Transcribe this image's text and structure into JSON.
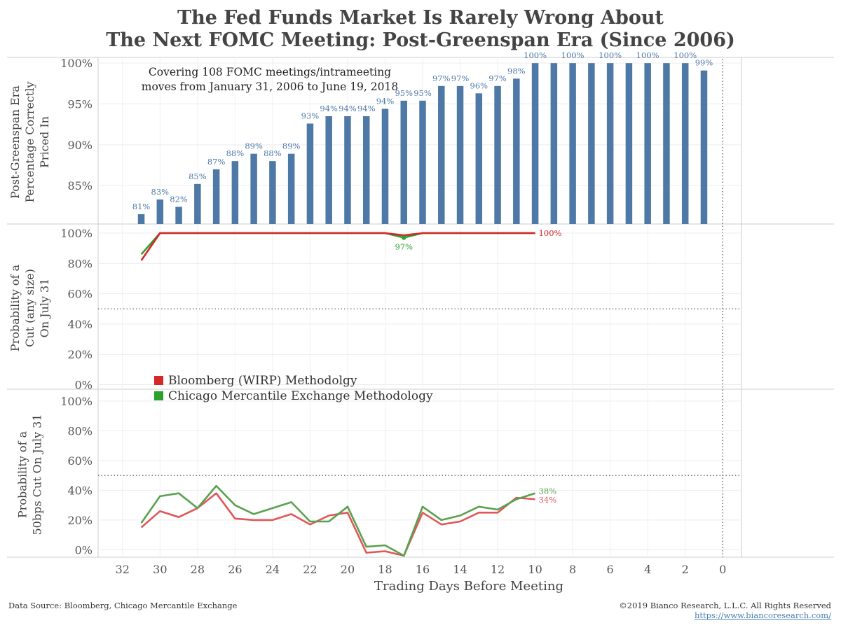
{
  "title": {
    "line1": "The Fed Funds Market Is Rarely Wrong About",
    "line2": "The Next FOMC Meeting: Post-Greenspan Era (Since 2006)"
  },
  "footer": {
    "source": "Data Source: Bloomberg, Chicago Mercantile Exchange",
    "copyright": "©2019 Bianco Research, L.L.C. All Rights Reserved",
    "url": "https://www.biancoresearch.com/"
  },
  "colors": {
    "bar": "#4e79a7",
    "bloomberg": "#d62728",
    "cme": "#2ca02c",
    "bloomberg_line2": "#e15759",
    "cme_line2": "#59a14f"
  },
  "chart_data": [
    {
      "type": "bar",
      "ylabel": [
        "Post-Greenspan Era",
        "Percentage Correctly",
        "Priced In"
      ],
      "note": [
        "Covering 108 FOMC meetings/intrameeting",
        "moves from January 31, 2006 to June 19, 2018"
      ],
      "yticks": [
        "85%",
        "90%",
        "95%",
        "100%"
      ],
      "ytick_values": [
        85,
        90,
        95,
        100
      ],
      "ylim": [
        80.3,
        100.7
      ],
      "x": [
        31,
        30,
        29,
        28,
        27,
        26,
        25,
        24,
        23,
        22,
        21,
        20,
        19,
        18,
        17,
        16,
        15,
        14,
        13,
        12,
        11,
        10,
        9,
        8,
        7,
        6,
        5,
        4,
        3,
        2,
        1
      ],
      "values": [
        81.5,
        83.3,
        82.4,
        85.2,
        87.0,
        88.0,
        88.9,
        88.0,
        88.9,
        92.6,
        93.5,
        93.5,
        93.5,
        94.4,
        95.4,
        95.4,
        97.2,
        97.2,
        96.3,
        97.2,
        98.1,
        100,
        100,
        100,
        100,
        100,
        100,
        100,
        100,
        100,
        99.1
      ],
      "labels": [
        "81%",
        "83%",
        "82%",
        "85%",
        "87%",
        "88%",
        "89%",
        "88%",
        "89%",
        "93%",
        "94%",
        "94%",
        "94%",
        "94%",
        "95%",
        "95%",
        "97%",
        "97%",
        "96%",
        "97%",
        "98%",
        "100%",
        "",
        "100%",
        "",
        "100%",
        "",
        "100%",
        "",
        "100%",
        "99%"
      ]
    },
    {
      "type": "line",
      "ylabel": [
        "Probability of a",
        "Cut (any size)",
        "On July 31"
      ],
      "yticks": [
        "0%",
        "20%",
        "40%",
        "60%",
        "80%",
        "100%"
      ],
      "ytick_values": [
        0,
        20,
        40,
        60,
        80,
        100
      ],
      "ylim": [
        -3,
        106
      ],
      "reference_line": 50,
      "series": [
        {
          "name": "Bloomberg (WIRP) Methodolgy",
          "x": [
            31,
            30,
            29,
            28,
            27,
            26,
            25,
            24,
            23,
            22,
            21,
            20,
            19,
            18,
            17,
            16,
            15,
            14,
            13,
            12,
            11,
            10
          ],
          "values": [
            82,
            100,
            100,
            100,
            100,
            100,
            100,
            100,
            100,
            100,
            100,
            100,
            100,
            100,
            98.5,
            100,
            100,
            100,
            100,
            100,
            100,
            100
          ],
          "end_label": "100%"
        },
        {
          "name": "Chicago Mercantile Exchange Methodology",
          "x": [
            31,
            30,
            29,
            28,
            27,
            26,
            25,
            24,
            23,
            22,
            21,
            20,
            19,
            18,
            17,
            16,
            15,
            14,
            13,
            12,
            11,
            10
          ],
          "values": [
            86,
            100,
            100,
            100,
            100,
            100,
            100,
            100,
            100,
            100,
            100,
            100,
            100,
            100,
            97,
            100,
            100,
            100,
            100,
            100,
            100,
            100
          ],
          "point_label": "97%"
        }
      ]
    },
    {
      "type": "line",
      "ylabel": [
        "Probability of a",
        "50bps Cut On July 31"
      ],
      "yticks": [
        "0%",
        "20%",
        "40%",
        "60%",
        "80%",
        "100%"
      ],
      "ytick_values": [
        0,
        20,
        40,
        60,
        80,
        100
      ],
      "ylim": [
        -5,
        108
      ],
      "reference_line": 50,
      "xlabel": "Trading Days Before Meeting",
      "xticks": [
        "32",
        "30",
        "28",
        "26",
        "24",
        "22",
        "20",
        "18",
        "16",
        "14",
        "12",
        "10",
        "8",
        "6",
        "4",
        "2",
        "0"
      ],
      "xtick_values": [
        32,
        30,
        28,
        26,
        24,
        22,
        20,
        18,
        16,
        14,
        12,
        10,
        8,
        6,
        4,
        2,
        0
      ],
      "xlim": [
        33.3,
        -1.0
      ],
      "series": [
        {
          "name": "Bloomberg (WIRP) Methodolgy",
          "x": [
            31,
            30,
            29,
            28,
            27,
            26,
            25,
            24,
            23,
            22,
            21,
            20,
            19,
            18,
            17,
            16,
            15,
            14,
            13,
            12,
            11,
            10
          ],
          "values": [
            15,
            26,
            22,
            28,
            38,
            21,
            20,
            20,
            24,
            17,
            23,
            25,
            -2,
            -1,
            -4,
            25,
            17,
            19,
            25,
            25,
            35,
            34
          ],
          "end_label": "34%"
        },
        {
          "name": "Chicago Mercantile Exchange Methodology",
          "x": [
            31,
            30,
            29,
            28,
            27,
            26,
            25,
            24,
            23,
            22,
            21,
            20,
            19,
            18,
            17,
            16,
            15,
            14,
            13,
            12,
            11,
            10
          ],
          "values": [
            18,
            36,
            38,
            28,
            43,
            30,
            24,
            28,
            32,
            19,
            19,
            29,
            2,
            3,
            -4,
            29,
            20,
            23,
            29,
            27,
            34,
            38
          ],
          "end_label": "38%"
        }
      ]
    }
  ],
  "legend": {
    "items": [
      {
        "label": "Bloomberg (WIRP) Methodolgy",
        "color": "#d62728"
      },
      {
        "label": "Chicago Mercantile Exchange Methodology",
        "color": "#2ca02c"
      }
    ]
  }
}
